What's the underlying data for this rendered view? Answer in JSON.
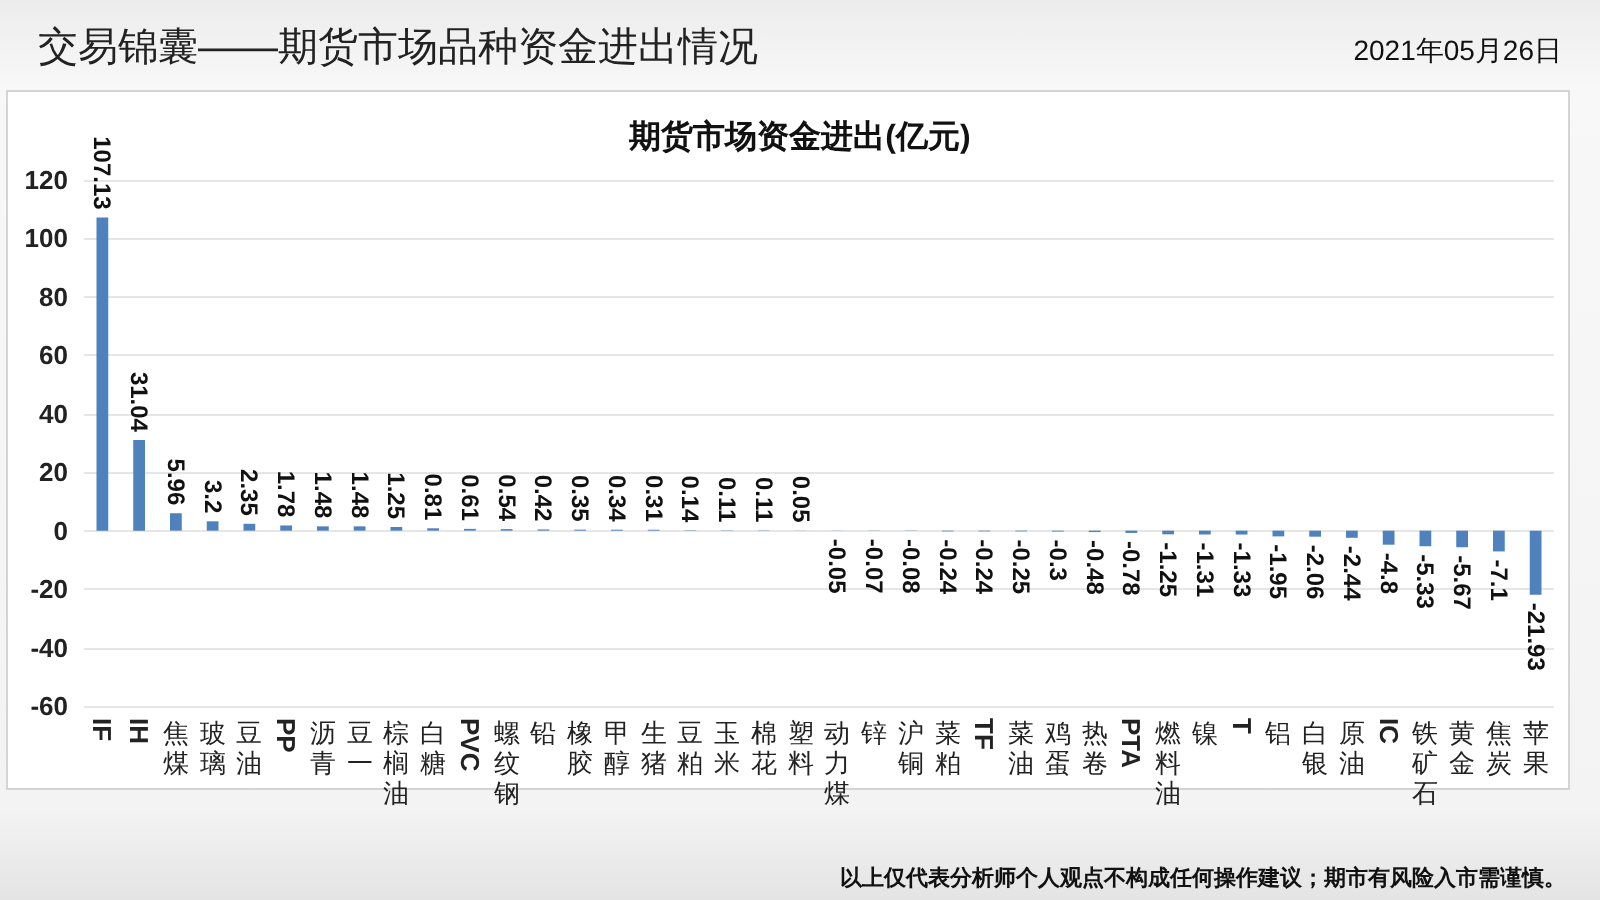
{
  "chart_data": {
    "type": "bar",
    "title": "交易锦囊——期货市场品种资金进出情况",
    "subtitle": "期货市场资金进出(亿元)",
    "annotations": [
      "2021年05月26日",
      "以上仅代表分析师个人观点不构成任何操作建议；期市有风险入市需谨慎。"
    ],
    "categories": [
      "IF",
      "IH",
      "焦煤",
      "玻璃",
      "豆油",
      "PP",
      "沥青",
      "豆一",
      "棕榈油",
      "白糖",
      "PVC",
      "螺纹钢",
      "铅",
      "橡胶",
      "甲醇",
      "生猪",
      "豆粕",
      "玉米",
      "棉花",
      "塑料",
      "动力煤",
      "锌",
      "沪铜",
      "菜粕",
      "TF",
      "菜油",
      "鸡蛋",
      "热卷",
      "PTA",
      "燃料油",
      "镍",
      "T",
      "铝",
      "白银",
      "原油",
      "IC",
      "铁矿石",
      "黄金",
      "焦炭",
      "苹果"
    ],
    "values": [
      107.13,
      31.04,
      5.96,
      3.2,
      2.35,
      1.78,
      1.48,
      1.48,
      1.25,
      0.81,
      0.61,
      0.54,
      0.42,
      0.35,
      0.34,
      0.31,
      0.14,
      0.11,
      0.11,
      0.05,
      -0.05,
      -0.07,
      -0.08,
      -0.24,
      -0.24,
      -0.25,
      -0.3,
      -0.48,
      -0.78,
      -1.25,
      -1.31,
      -1.33,
      -1.95,
      -2.06,
      -2.44,
      -4.8,
      -5.33,
      -5.67,
      -7.1,
      -21.93
    ],
    "color": "#4f81bd",
    "ylim": [
      -60,
      120
    ],
    "yticks": [
      -60,
      -40,
      -20,
      0,
      20,
      40,
      60,
      80,
      100,
      120
    ],
    "grid": "y",
    "data_labels": true
  }
}
